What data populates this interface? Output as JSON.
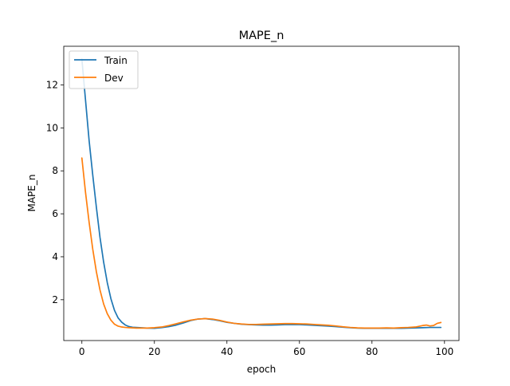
{
  "chart_data": {
    "type": "line",
    "title": "MAPE_n",
    "xlabel": "epoch",
    "ylabel": "MAPE_n",
    "xlim": [
      -5,
      104
    ],
    "ylim": [
      0.1,
      13.8
    ],
    "xticks": [
      0,
      20,
      40,
      60,
      80,
      100
    ],
    "yticks": [
      2,
      4,
      6,
      8,
      10,
      12
    ],
    "grid": false,
    "legend_position": "top-left",
    "series": [
      {
        "name": "Train",
        "color": "#1f77b4",
        "x": [
          0,
          1,
          2,
          3,
          4,
          5,
          6,
          7,
          8,
          9,
          10,
          11,
          12,
          13,
          14,
          15,
          16,
          18,
          20,
          22,
          24,
          26,
          28,
          30,
          32,
          34,
          36,
          38,
          40,
          42,
          44,
          46,
          48,
          50,
          52,
          54,
          56,
          58,
          60,
          62,
          64,
          66,
          68,
          70,
          72,
          74,
          76,
          78,
          80,
          82,
          84,
          86,
          88,
          90,
          92,
          94,
          96,
          98,
          99
        ],
        "y": [
          13.2,
          11.3,
          9.4,
          7.8,
          6.3,
          4.9,
          3.75,
          2.8,
          2.05,
          1.5,
          1.15,
          0.95,
          0.82,
          0.75,
          0.72,
          0.71,
          0.7,
          0.68,
          0.67,
          0.7,
          0.75,
          0.82,
          0.92,
          1.03,
          1.1,
          1.12,
          1.08,
          1.02,
          0.95,
          0.9,
          0.86,
          0.84,
          0.83,
          0.82,
          0.82,
          0.83,
          0.84,
          0.84,
          0.84,
          0.83,
          0.81,
          0.79,
          0.77,
          0.75,
          0.72,
          0.7,
          0.68,
          0.67,
          0.67,
          0.67,
          0.67,
          0.67,
          0.67,
          0.68,
          0.69,
          0.7,
          0.71,
          0.71,
          0.71
        ]
      },
      {
        "name": "Dev",
        "color": "#ff7f0e",
        "x": [
          0,
          1,
          2,
          3,
          4,
          5,
          6,
          7,
          8,
          9,
          10,
          11,
          12,
          13,
          14,
          15,
          16,
          18,
          20,
          22,
          24,
          26,
          28,
          30,
          32,
          34,
          36,
          38,
          40,
          42,
          44,
          46,
          48,
          50,
          52,
          54,
          56,
          58,
          60,
          62,
          64,
          66,
          68,
          70,
          72,
          74,
          76,
          78,
          80,
          82,
          84,
          86,
          88,
          90,
          92,
          94,
          95,
          96,
          97,
          98,
          99
        ],
        "y": [
          8.6,
          7.0,
          5.6,
          4.35,
          3.3,
          2.45,
          1.8,
          1.35,
          1.05,
          0.86,
          0.77,
          0.73,
          0.71,
          0.7,
          0.69,
          0.68,
          0.68,
          0.68,
          0.7,
          0.73,
          0.8,
          0.88,
          0.97,
          1.05,
          1.1,
          1.12,
          1.1,
          1.04,
          0.96,
          0.9,
          0.87,
          0.85,
          0.85,
          0.86,
          0.87,
          0.88,
          0.89,
          0.89,
          0.88,
          0.87,
          0.85,
          0.83,
          0.81,
          0.78,
          0.74,
          0.71,
          0.69,
          0.68,
          0.68,
          0.68,
          0.69,
          0.68,
          0.7,
          0.71,
          0.73,
          0.8,
          0.82,
          0.78,
          0.8,
          0.9,
          0.94
        ]
      }
    ]
  }
}
